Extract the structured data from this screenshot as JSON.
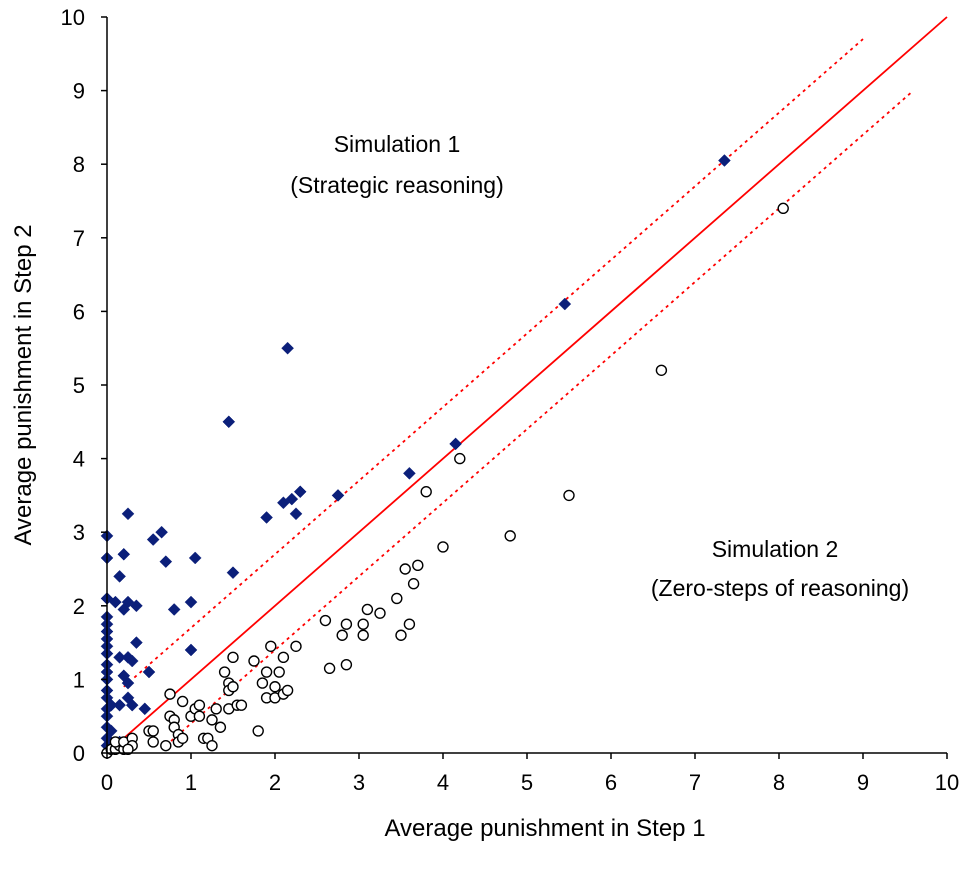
{
  "chart_data": {
    "type": "scatter",
    "xlabel": "Average punishment in Step 1",
    "ylabel": "Average punishment in Step 2",
    "xlim": [
      0,
      10
    ],
    "ylim": [
      0,
      10
    ],
    "xticks": [
      "0",
      "1",
      "2",
      "3",
      "4",
      "5",
      "6",
      "7",
      "8",
      "9",
      "10"
    ],
    "yticks": [
      "0",
      "1",
      "2",
      "3",
      "4",
      "5",
      "6",
      "7",
      "8",
      "9",
      "10"
    ],
    "grid": false,
    "legend": "none",
    "annotations": [
      {
        "lines": [
          "Simulation 1",
          "(Strategic reasoning)"
        ],
        "series": "Simulation 1"
      },
      {
        "lines": [
          "Simulation 2",
          "(Zero-steps of reasoning)"
        ],
        "series": "Simulation 2"
      }
    ],
    "reference_lines": [
      {
        "kind": "diagonal",
        "style": "solid",
        "color": "#ff0000",
        "points": [
          [
            0,
            0
          ],
          [
            10,
            10
          ]
        ]
      },
      {
        "kind": "upper-band",
        "style": "dotted",
        "color": "#ff0000",
        "points": [
          [
            0.2,
            0.9
          ],
          [
            9.0,
            9.7
          ]
        ]
      },
      {
        "kind": "lower-band",
        "style": "dotted",
        "color": "#ff0000",
        "points": [
          [
            0.7,
            0.1
          ],
          [
            9.6,
            9.0
          ]
        ]
      }
    ],
    "series": [
      {
        "marker": "filled-diamond",
        "color": "#0b1f7a",
        "points": [
          [
            0.0,
            2.95
          ],
          [
            0.0,
            2.65
          ],
          [
            0.0,
            2.1
          ],
          [
            0.0,
            1.85
          ],
          [
            0.0,
            1.75
          ],
          [
            0.0,
            1.65
          ],
          [
            0.0,
            1.55
          ],
          [
            0.0,
            1.45
          ],
          [
            0.0,
            1.35
          ],
          [
            0.0,
            1.2
          ],
          [
            0.0,
            1.1
          ],
          [
            0.0,
            1.0
          ],
          [
            0.0,
            0.85
          ],
          [
            0.0,
            0.75
          ],
          [
            0.0,
            0.6
          ],
          [
            0.0,
            0.5
          ],
          [
            0.0,
            0.35
          ],
          [
            0.0,
            0.2
          ],
          [
            0.0,
            0.1
          ],
          [
            0.0,
            0.0
          ],
          [
            0.05,
            0.05
          ],
          [
            0.1,
            0.1
          ],
          [
            0.15,
            0.15
          ],
          [
            0.05,
            0.3
          ],
          [
            0.05,
            0.65
          ],
          [
            0.1,
            2.05
          ],
          [
            0.15,
            1.3
          ],
          [
            0.15,
            0.65
          ],
          [
            0.15,
            2.4
          ],
          [
            0.2,
            2.7
          ],
          [
            0.2,
            1.95
          ],
          [
            0.2,
            1.05
          ],
          [
            0.25,
            3.25
          ],
          [
            0.25,
            2.05
          ],
          [
            0.25,
            1.3
          ],
          [
            0.25,
            0.95
          ],
          [
            0.25,
            0.75
          ],
          [
            0.3,
            1.25
          ],
          [
            0.3,
            0.65
          ],
          [
            0.35,
            1.5
          ],
          [
            0.35,
            2.0
          ],
          [
            0.45,
            0.6
          ],
          [
            0.5,
            1.1
          ],
          [
            0.55,
            2.9
          ],
          [
            0.65,
            3.0
          ],
          [
            0.7,
            2.6
          ],
          [
            0.8,
            1.95
          ],
          [
            1.0,
            2.05
          ],
          [
            1.0,
            1.4
          ],
          [
            1.05,
            2.65
          ],
          [
            1.45,
            4.5
          ],
          [
            1.5,
            2.45
          ],
          [
            1.9,
            3.2
          ],
          [
            2.1,
            3.4
          ],
          [
            2.15,
            5.5
          ],
          [
            2.2,
            3.45
          ],
          [
            2.25,
            3.25
          ],
          [
            2.3,
            3.55
          ],
          [
            2.75,
            3.5
          ],
          [
            3.6,
            3.8
          ],
          [
            4.15,
            4.2
          ],
          [
            5.45,
            6.1
          ],
          [
            7.35,
            8.05
          ]
        ]
      },
      {
        "marker": "open-circle",
        "color": "#000000",
        "points": [
          [
            0.0,
            0.0
          ],
          [
            0.05,
            0.05
          ],
          [
            0.1,
            0.05
          ],
          [
            0.15,
            0.1
          ],
          [
            0.2,
            0.05
          ],
          [
            0.1,
            0.15
          ],
          [
            0.2,
            0.15
          ],
          [
            0.3,
            0.2
          ],
          [
            0.3,
            0.1
          ],
          [
            0.25,
            0.05
          ],
          [
            0.5,
            0.3
          ],
          [
            0.55,
            0.3
          ],
          [
            0.55,
            0.15
          ],
          [
            0.7,
            0.1
          ],
          [
            0.75,
            0.5
          ],
          [
            0.75,
            0.8
          ],
          [
            0.8,
            0.45
          ],
          [
            0.8,
            0.35
          ],
          [
            0.85,
            0.25
          ],
          [
            0.85,
            0.15
          ],
          [
            0.9,
            0.2
          ],
          [
            0.9,
            0.7
          ],
          [
            1.0,
            0.5
          ],
          [
            1.05,
            0.6
          ],
          [
            1.1,
            0.65
          ],
          [
            1.1,
            0.5
          ],
          [
            1.15,
            0.2
          ],
          [
            1.2,
            0.2
          ],
          [
            1.25,
            0.45
          ],
          [
            1.25,
            0.1
          ],
          [
            1.3,
            0.6
          ],
          [
            1.35,
            0.35
          ],
          [
            1.4,
            1.1
          ],
          [
            1.45,
            0.95
          ],
          [
            1.45,
            0.6
          ],
          [
            1.45,
            0.85
          ],
          [
            1.5,
            1.3
          ],
          [
            1.5,
            0.9
          ],
          [
            1.55,
            0.65
          ],
          [
            1.6,
            0.65
          ],
          [
            1.75,
            1.25
          ],
          [
            1.8,
            0.3
          ],
          [
            1.85,
            0.95
          ],
          [
            1.9,
            1.1
          ],
          [
            1.9,
            0.75
          ],
          [
            1.95,
            1.45
          ],
          [
            2.0,
            0.75
          ],
          [
            2.0,
            0.9
          ],
          [
            2.05,
            1.1
          ],
          [
            2.1,
            1.3
          ],
          [
            2.1,
            0.8
          ],
          [
            2.15,
            0.85
          ],
          [
            2.25,
            1.45
          ],
          [
            2.6,
            1.8
          ],
          [
            2.65,
            1.15
          ],
          [
            2.8,
            1.6
          ],
          [
            2.85,
            1.75
          ],
          [
            2.85,
            1.2
          ],
          [
            3.05,
            1.6
          ],
          [
            3.05,
            1.75
          ],
          [
            3.1,
            1.95
          ],
          [
            3.25,
            1.9
          ],
          [
            3.45,
            2.1
          ],
          [
            3.5,
            1.6
          ],
          [
            3.55,
            2.5
          ],
          [
            3.6,
            1.75
          ],
          [
            3.65,
            2.3
          ],
          [
            3.7,
            2.55
          ],
          [
            3.8,
            3.55
          ],
          [
            4.0,
            2.8
          ],
          [
            4.2,
            4.0
          ],
          [
            4.8,
            2.95
          ],
          [
            5.5,
            3.5
          ],
          [
            6.6,
            5.2
          ],
          [
            8.05,
            7.4
          ]
        ]
      }
    ]
  }
}
